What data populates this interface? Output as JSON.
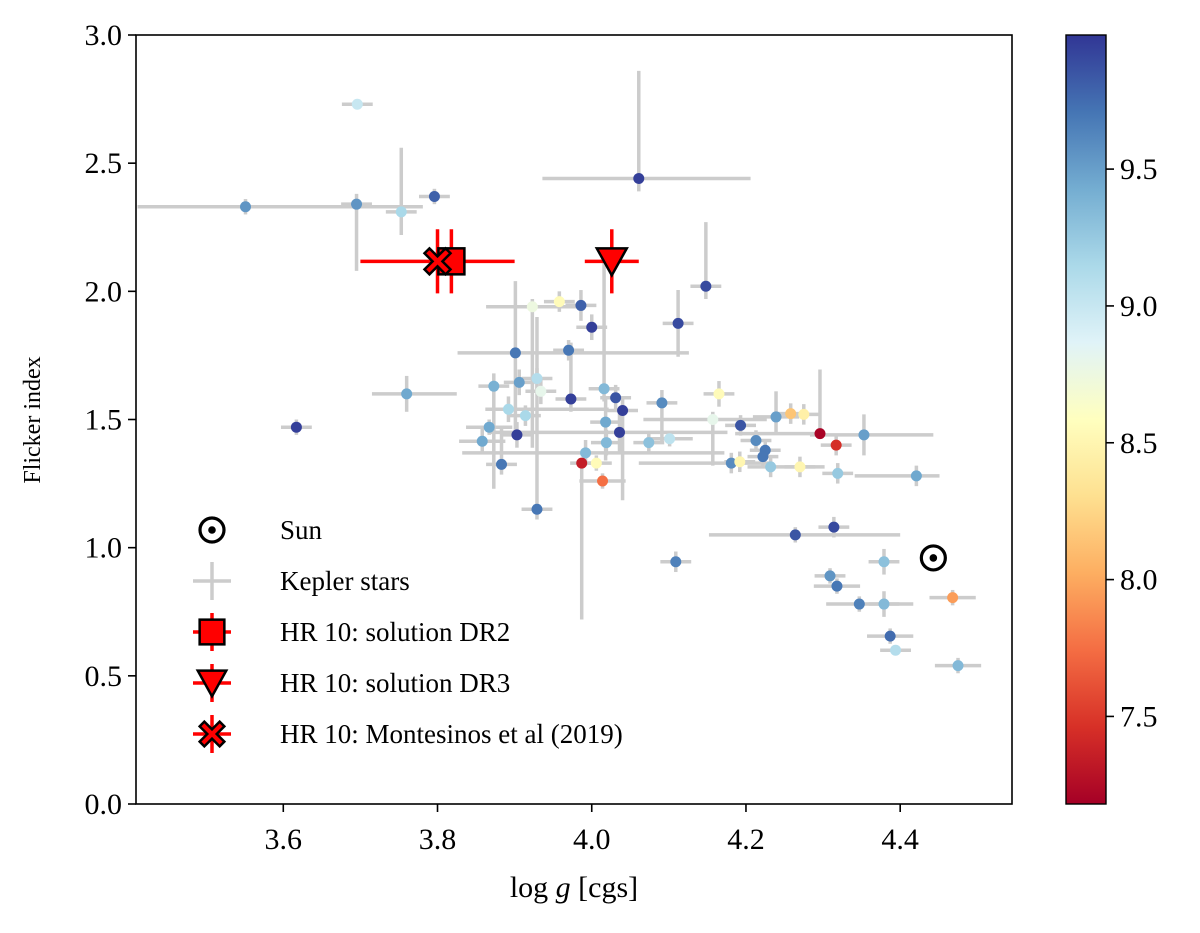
{
  "chart_data": {
    "type": "scatter",
    "title": "",
    "xlabel": "log g [cgs]",
    "xlabel_parts": [
      "log ",
      "g",
      " [cgs]"
    ],
    "ylabel": "Flicker index",
    "xlim": [
      3.409,
      4.545
    ],
    "ylim": [
      0.0,
      3.0
    ],
    "xticks": [
      3.6,
      3.8,
      4.0,
      4.2,
      4.4
    ],
    "xtick_labels": [
      "3.6",
      "3.8",
      "4.0",
      "4.2",
      "4.4"
    ],
    "yticks": [
      0.0,
      0.5,
      1.0,
      1.5,
      2.0,
      2.5,
      3.0
    ],
    "ytick_labels": [
      "0.0",
      "0.5",
      "1.0",
      "1.5",
      "2.0",
      "2.5",
      "3.0"
    ],
    "grid": false,
    "legend_position": "lower-left",
    "colorbar": {
      "colormap": "RdYlBu",
      "range": [
        7.18,
        9.99
      ],
      "ticks": [
        7.5,
        8.0,
        8.5,
        9.0,
        9.5
      ],
      "tick_labels": [
        "7.5",
        "8.0",
        "8.5",
        "9.0",
        "9.5"
      ]
    },
    "legend": [
      {
        "key": "sun",
        "label": "Sun"
      },
      {
        "key": "kepler",
        "label": "Kepler stars"
      },
      {
        "key": "dr2",
        "label": "HR 10: solution DR2"
      },
      {
        "key": "dr3",
        "label": "HR 10: solution DR3"
      },
      {
        "key": "montesinos",
        "label": "HR 10: Montesinos et al (2019)"
      }
    ],
    "series": [
      {
        "name": "Kepler stars",
        "marker": "circle",
        "errorbar_color": "#cccccc",
        "points": [
          {
            "x": 3.551,
            "y": 2.33,
            "xerr": [
              0.14,
              0.23
            ],
            "yerr": 0.03,
            "c": 9.55
          },
          {
            "x": 3.696,
            "y": 2.73,
            "xerr": 0.02,
            "yerr": 0.02,
            "c": 9.0
          },
          {
            "x": 3.695,
            "y": 2.34,
            "xerr": 0.02,
            "yerr": [
              0.26,
              0.04
            ],
            "c": 9.55
          },
          {
            "x": 3.753,
            "y": 2.31,
            "xerr": 0.02,
            "yerr": [
              0.09,
              0.25
            ],
            "c": 9.15
          },
          {
            "x": 3.796,
            "y": 2.37,
            "xerr": 0.02,
            "yerr": 0.03,
            "c": 9.8
          },
          {
            "x": 4.061,
            "y": 2.44,
            "xerr": [
              0.125,
              0.145
            ],
            "yerr": [
              0.05,
              0.42
            ],
            "c": 9.95
          },
          {
            "x": 4.148,
            "y": 2.02,
            "xerr": 0.02,
            "yerr": [
              0.05,
              0.25
            ],
            "c": 9.9
          },
          {
            "x": 3.923,
            "y": 1.94,
            "xerr": [
              0.06,
              0.06
            ],
            "yerr": [
              0.55,
              0.03
            ],
            "c": 8.75
          },
          {
            "x": 3.958,
            "y": 1.96,
            "xerr": 0.02,
            "yerr": 0.04,
            "c": 8.55
          },
          {
            "x": 3.986,
            "y": 1.945,
            "xerr": 0.02,
            "yerr": 0.06,
            "c": 9.8
          },
          {
            "x": 4.0,
            "y": 1.86,
            "xerr": 0.02,
            "yerr": 0.05,
            "c": 9.95
          },
          {
            "x": 4.112,
            "y": 1.875,
            "xerr": 0.02,
            "yerr": 0.13,
            "c": 9.9
          },
          {
            "x": 3.901,
            "y": 1.76,
            "xerr": [
              0.075,
              0.225
            ],
            "yerr": [
              0.3,
              0.28
            ],
            "c": 9.7
          },
          {
            "x": 3.97,
            "y": 1.77,
            "xerr": 0.02,
            "yerr": 0.04,
            "c": 9.7
          },
          {
            "x": 3.873,
            "y": 1.63,
            "xerr": 0.02,
            "yerr": [
              0.4,
              0.05
            ],
            "c": 9.4
          },
          {
            "x": 3.906,
            "y": 1.645,
            "xerr": 0.02,
            "yerr": 0.05,
            "c": 9.5
          },
          {
            "x": 3.929,
            "y": 1.66,
            "xerr": 0.02,
            "yerr": 0.04,
            "c": 9.1
          },
          {
            "x": 3.934,
            "y": 1.61,
            "xerr": 0.02,
            "yerr": [
              0.05,
              0.05
            ],
            "c": 8.8
          },
          {
            "x": 3.973,
            "y": 1.58,
            "xerr": 0.02,
            "yerr": [
              0.05,
              0.22
            ],
            "c": 9.95
          },
          {
            "x": 4.016,
            "y": 1.62,
            "xerr": 0.02,
            "yerr": [
              0.05,
              0.5
            ],
            "c": 9.35
          },
          {
            "x": 4.031,
            "y": 1.585,
            "xerr": 0.02,
            "yerr": 0.05,
            "c": 9.85
          },
          {
            "x": 4.04,
            "y": 1.535,
            "xerr": 0.02,
            "yerr": [
              0.35,
              0.05
            ],
            "c": 9.95
          },
          {
            "x": 4.091,
            "y": 1.565,
            "xerr": 0.02,
            "yerr": [
              0.15,
              0.05
            ],
            "c": 9.6
          },
          {
            "x": 3.892,
            "y": 1.54,
            "xerr": [
              0.03,
              0.13
            ],
            "yerr": 0.05,
            "c": 9.15
          },
          {
            "x": 3.914,
            "y": 1.515,
            "xerr": 0.02,
            "yerr": 0.04,
            "c": 9.15
          },
          {
            "x": 3.867,
            "y": 1.47,
            "xerr": 0.03,
            "yerr": 0.03,
            "c": 9.45
          },
          {
            "x": 4.018,
            "y": 1.49,
            "xerr": 0.02,
            "yerr": [
              0.15,
              0.1
            ],
            "c": 9.45
          },
          {
            "x": 3.903,
            "y": 1.44,
            "xerr": 0.02,
            "yerr": 0.05,
            "c": 9.95
          },
          {
            "x": 4.036,
            "y": 1.45,
            "xerr": [
              0.17,
              0.14
            ],
            "yerr": 0.08,
            "c": 9.95
          },
          {
            "x": 3.858,
            "y": 1.415,
            "xerr": 0.03,
            "yerr": 0.05,
            "c": 9.45
          },
          {
            "x": 3.883,
            "y": 1.325,
            "xerr": 0.02,
            "yerr": [
              0.04,
              0.15
            ],
            "c": 9.7
          },
          {
            "x": 3.929,
            "y": 1.15,
            "xerr": 0.02,
            "yerr": [
              0.04,
              0.75
            ],
            "c": 9.7
          },
          {
            "x": 3.992,
            "y": 1.37,
            "xerr": [
              0.16,
              0.18
            ],
            "yerr": 0.05,
            "c": 9.35
          },
          {
            "x": 3.987,
            "y": 1.33,
            "xerr": 0.015,
            "yerr": [
              0.61,
              0.02
            ],
            "c": 7.35
          },
          {
            "x": 4.006,
            "y": 1.33,
            "xerr": 0.02,
            "yerr": 0.03,
            "c": 8.55
          },
          {
            "x": 4.014,
            "y": 1.26,
            "xerr": 0.03,
            "yerr": 0.03,
            "c": 7.75
          },
          {
            "x": 4.019,
            "y": 1.41,
            "xerr": 0.02,
            "yerr": 0.05,
            "c": 9.35
          },
          {
            "x": 4.074,
            "y": 1.41,
            "xerr": 0.02,
            "yerr": 0.04,
            "c": 9.3
          },
          {
            "x": 4.101,
            "y": 1.425,
            "xerr": 0.03,
            "yerr": 0.03,
            "c": 9.05
          },
          {
            "x": 4.109,
            "y": 0.945,
            "xerr": 0.02,
            "yerr": 0.04,
            "c": 9.65
          },
          {
            "x": 3.617,
            "y": 1.47,
            "xerr": 0.02,
            "yerr": 0.03,
            "c": 9.95
          },
          {
            "x": 3.76,
            "y": 1.6,
            "xerr": [
              0.045,
              0.065
            ],
            "yerr": 0.07,
            "c": 9.45
          },
          {
            "x": 4.165,
            "y": 1.6,
            "xerr": 0.02,
            "yerr": 0.05,
            "c": 8.55
          },
          {
            "x": 4.157,
            "y": 1.5,
            "xerr": [
              0.09,
              0.07
            ],
            "yerr": [
              0.18,
              0.03
            ],
            "c": 8.8
          },
          {
            "x": 4.193,
            "y": 1.477,
            "xerr": 0.02,
            "yerr": 0.04,
            "c": 9.85
          },
          {
            "x": 4.213,
            "y": 1.418,
            "xerr": 0.02,
            "yerr": 0.04,
            "c": 9.6
          },
          {
            "x": 4.225,
            "y": 1.38,
            "xerr": 0.02,
            "yerr": 0.04,
            "c": 9.7
          },
          {
            "x": 4.222,
            "y": 1.355,
            "xerr": 0.02,
            "yerr": 0.04,
            "c": 9.7
          },
          {
            "x": 4.181,
            "y": 1.33,
            "xerr": [
              0.12,
              0.05
            ],
            "yerr": 0.04,
            "c": 9.6
          },
          {
            "x": 4.192,
            "y": 1.335,
            "xerr": 0.02,
            "yerr": 0.04,
            "c": 8.5
          },
          {
            "x": 4.232,
            "y": 1.315,
            "xerr": [
              0.03,
              0.07
            ],
            "yerr": 0.04,
            "c": 9.25
          },
          {
            "x": 4.239,
            "y": 1.51,
            "xerr": 0.03,
            "yerr": [
              0.06,
              0.1
            ],
            "c": 9.5
          },
          {
            "x": 4.258,
            "y": 1.523,
            "xerr": 0.02,
            "yerr": 0.04,
            "c": 8.15
          },
          {
            "x": 4.275,
            "y": 1.52,
            "xerr": 0.02,
            "yerr": 0.04,
            "c": 8.45
          },
          {
            "x": 4.296,
            "y": 1.445,
            "xerr": [
              0.11,
              0.0
            ],
            "yerr": [
              0.01,
              0.25
            ],
            "c": 7.2
          },
          {
            "x": 4.317,
            "y": 1.4,
            "xerr": 0.02,
            "yerr": 0.04,
            "c": 7.45
          },
          {
            "x": 4.353,
            "y": 1.44,
            "xerr": [
              0.07,
              0.09
            ],
            "yerr": 0.08,
            "c": 9.5
          },
          {
            "x": 4.27,
            "y": 1.315,
            "xerr": 0.02,
            "yerr": 0.04,
            "c": 8.5
          },
          {
            "x": 4.319,
            "y": 1.29,
            "xerr": 0.02,
            "yerr": 0.04,
            "c": 9.25
          },
          {
            "x": 4.421,
            "y": 1.28,
            "xerr": [
              0.08,
              0.03
            ],
            "yerr": 0.04,
            "c": 9.45
          },
          {
            "x": 4.264,
            "y": 1.05,
            "xerr": [
              0.112,
              0.136
            ],
            "yerr": 0.03,
            "c": 9.85
          },
          {
            "x": 4.314,
            "y": 1.08,
            "xerr": 0.02,
            "yerr": 0.04,
            "c": 9.9
          },
          {
            "x": 4.379,
            "y": 0.945,
            "xerr": 0.02,
            "yerr": 0.05,
            "c": 9.3
          },
          {
            "x": 4.309,
            "y": 0.89,
            "xerr": 0.02,
            "yerr": 0.03,
            "c": 9.55
          },
          {
            "x": 4.318,
            "y": 0.85,
            "xerr": 0.03,
            "yerr": 0.03,
            "c": 9.7
          },
          {
            "x": 4.347,
            "y": 0.78,
            "xerr": [
              0.043,
              0.07
            ],
            "yerr": 0.03,
            "c": 9.65
          },
          {
            "x": 4.379,
            "y": 0.78,
            "xerr": 0.02,
            "yerr": 0.05,
            "c": 9.35
          },
          {
            "x": 4.468,
            "y": 0.805,
            "xerr": 0.03,
            "yerr": 0.03,
            "c": 7.95
          },
          {
            "x": 4.387,
            "y": 0.655,
            "xerr": 0.03,
            "yerr": 0.03,
            "c": 9.75
          },
          {
            "x": 4.394,
            "y": 0.6,
            "xerr": 0.02,
            "yerr": 0.02,
            "c": 9.1
          },
          {
            "x": 4.475,
            "y": 0.54,
            "xerr": 0.03,
            "yerr": 0.03,
            "c": 9.35
          }
        ]
      },
      {
        "name": "Sun",
        "marker": "sun",
        "points": [
          {
            "x": 4.443,
            "y": 0.96
          }
        ]
      },
      {
        "name": "HR 10: solution DR2",
        "marker": "square",
        "color": "#ff0000",
        "points": [
          {
            "x": 3.818,
            "y": 2.117,
            "xerr": 0.0,
            "yerr": 0.125
          }
        ]
      },
      {
        "name": "HR 10: solution DR3",
        "marker": "triangle-down",
        "color": "#ff0000",
        "points": [
          {
            "x": 4.026,
            "y": 2.117,
            "xerr": 0.035,
            "yerr": 0.125
          }
        ]
      },
      {
        "name": "HR 10: Montesinos et al (2019)",
        "marker": "x-filled",
        "color": "#ff0000",
        "points": [
          {
            "x": 3.8,
            "y": 2.117,
            "xerr": 0.1,
            "yerr": 0.125
          }
        ]
      }
    ]
  }
}
